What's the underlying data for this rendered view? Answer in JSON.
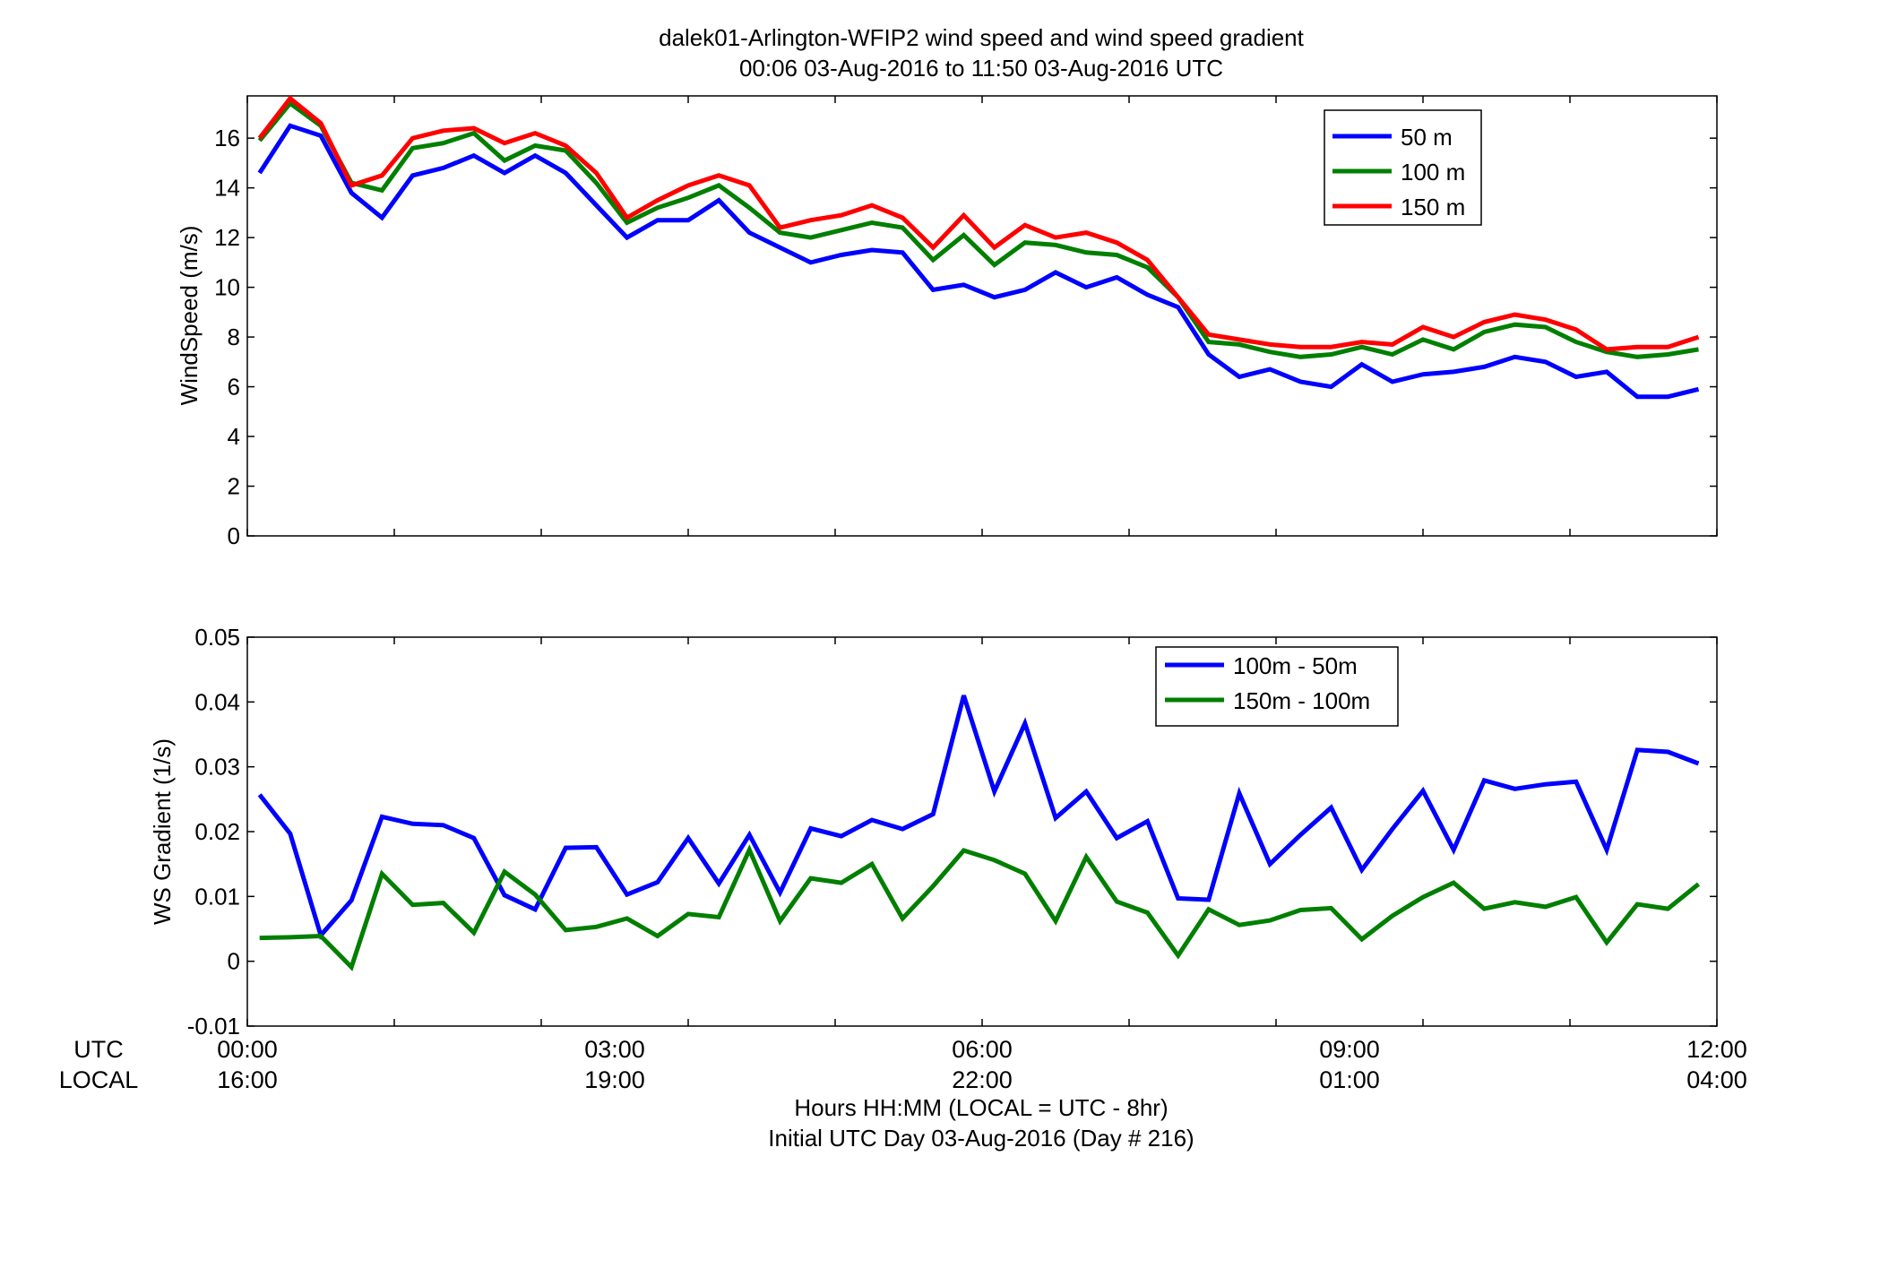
{
  "title": {
    "line1": "dalek01-Arlington-WFIP2  wind speed and wind speed gradient",
    "line2": "00:06 03-Aug-2016 to 11:50 03-Aug-2016  UTC"
  },
  "x_axis": {
    "row_labels": {
      "utc": "UTC",
      "local": "LOCAL"
    },
    "utc_ticks": [
      "00:00",
      "03:00",
      "06:00",
      "09:00",
      "12:00"
    ],
    "local_ticks": [
      "16:00",
      "19:00",
      "22:00",
      "01:00",
      "04:00"
    ],
    "xlabel_line1": "Hours HH:MM  (LOCAL = UTC - 8hr)",
    "xlabel_line2": "Initial UTC Day 03-Aug-2016 (Day # 216)"
  },
  "colors": {
    "blue": "#0000ff",
    "green": "#007f00",
    "red": "#ff0000"
  },
  "chart_data": [
    {
      "type": "line",
      "ylabel": "WindSpeed (m/s)",
      "xlim": [
        0,
        12
      ],
      "ylim": [
        0,
        17.7
      ],
      "yticks": [
        0,
        2,
        4,
        6,
        8,
        10,
        12,
        14,
        16
      ],
      "ytick_labels": [
        "0",
        "2",
        "4",
        "6",
        "8",
        "10",
        "12",
        "14",
        "16"
      ],
      "x_ticks_hours": [
        0,
        1.2,
        2.4,
        3.6,
        4.8,
        6,
        7.2,
        8.4,
        9.6,
        10.8,
        12
      ],
      "grid": false,
      "legend_position": "top-right",
      "x_start_hours": 0.1,
      "x_step_hours": 0.25,
      "series": [
        {
          "name": "50 m",
          "color": "#0000ff",
          "values": [
            14.6,
            16.5,
            16.1,
            13.8,
            12.8,
            14.5,
            14.8,
            15.3,
            14.6,
            15.3,
            14.6,
            13.3,
            12.0,
            12.7,
            12.7,
            13.5,
            12.2,
            11.6,
            11.0,
            11.3,
            11.5,
            11.4,
            9.9,
            10.1,
            9.6,
            9.9,
            10.6,
            10.0,
            10.4,
            9.7,
            9.2,
            7.3,
            6.4,
            6.7,
            6.2,
            6.0,
            6.9,
            6.2,
            6.5,
            6.6,
            6.8,
            7.2,
            7.0,
            6.4,
            6.6,
            5.6,
            5.6,
            5.9
          ]
        },
        {
          "name": "100 m",
          "color": "#007f00",
          "values": [
            15.9,
            17.4,
            16.5,
            14.2,
            13.9,
            15.6,
            15.8,
            16.2,
            15.1,
            15.7,
            15.5,
            14.2,
            12.6,
            13.2,
            13.6,
            14.1,
            13.2,
            12.2,
            12.0,
            12.3,
            12.6,
            12.4,
            11.1,
            12.1,
            10.9,
            11.8,
            11.7,
            11.4,
            11.3,
            10.8,
            9.6,
            7.8,
            7.7,
            7.4,
            7.2,
            7.3,
            7.6,
            7.3,
            7.9,
            7.5,
            8.2,
            8.5,
            8.4,
            7.8,
            7.4,
            7.2,
            7.3,
            7.5
          ]
        },
        {
          "name": "150 m",
          "color": "#ff0000",
          "values": [
            16.0,
            17.6,
            16.6,
            14.1,
            14.5,
            16.0,
            16.3,
            16.4,
            15.8,
            16.2,
            15.7,
            14.6,
            12.8,
            13.5,
            14.1,
            14.5,
            14.1,
            12.4,
            12.7,
            12.9,
            13.3,
            12.8,
            11.6,
            12.9,
            11.6,
            12.5,
            12.0,
            12.2,
            11.8,
            11.1,
            9.6,
            8.1,
            7.9,
            7.7,
            7.6,
            7.6,
            7.8,
            7.7,
            8.4,
            8.0,
            8.6,
            8.9,
            8.7,
            8.3,
            7.5,
            7.6,
            7.6,
            8.0
          ]
        }
      ]
    },
    {
      "type": "line",
      "ylabel": "WS Gradient (1/s)",
      "xlim": [
        0,
        12
      ],
      "ylim": [
        -0.01,
        0.05
      ],
      "yticks": [
        -0.01,
        0,
        0.01,
        0.02,
        0.03,
        0.04,
        0.05
      ],
      "ytick_labels": [
        "-0.01",
        "0",
        "0.01",
        "0.02",
        "0.03",
        "0.04",
        "0.05"
      ],
      "x_ticks_hours": [
        0,
        1.2,
        2.4,
        3.6,
        4.8,
        6,
        7.2,
        8.4,
        9.6,
        10.8,
        12
      ],
      "grid": false,
      "legend_position": "top-right",
      "x_start_hours": 0.1,
      "x_step_hours": 0.25,
      "series": [
        {
          "name": "100m - 50m",
          "color": "#0000ff",
          "values": [
            0.0257,
            0.0197,
            0.004,
            0.0094,
            0.0223,
            0.0212,
            0.021,
            0.019,
            0.0102,
            0.008,
            0.0175,
            0.0176,
            0.0103,
            0.0122,
            0.019,
            0.012,
            0.0195,
            0.0106,
            0.0205,
            0.0193,
            0.0218,
            0.0204,
            0.0227,
            0.041,
            0.0262,
            0.0367,
            0.0221,
            0.0262,
            0.019,
            0.0216,
            0.0097,
            0.0095,
            0.0259,
            0.015,
            0.0195,
            0.0237,
            0.0141,
            0.0204,
            0.0263,
            0.0172,
            0.0279,
            0.0266,
            0.0273,
            0.0277,
            0.0172,
            0.0326,
            0.0323,
            0.0305
          ]
        },
        {
          "name": "150m - 100m",
          "color": "#007f00",
          "values": [
            0.0036,
            0.0037,
            0.0039,
            -0.0009,
            0.0135,
            0.0087,
            0.009,
            0.0044,
            0.0138,
            0.0103,
            0.0048,
            0.0053,
            0.0066,
            0.0039,
            0.0073,
            0.0068,
            0.0172,
            0.0062,
            0.0128,
            0.0121,
            0.015,
            0.0066,
            0.0116,
            0.0171,
            0.0156,
            0.0135,
            0.0062,
            0.0161,
            0.0092,
            0.0075,
            0.0009,
            0.008,
            0.0056,
            0.0063,
            0.0079,
            0.0082,
            0.0034,
            0.007,
            0.0099,
            0.0121,
            0.0081,
            0.0091,
            0.0084,
            0.0099,
            0.0029,
            0.0088,
            0.0081,
            0.0119
          ]
        }
      ]
    }
  ]
}
